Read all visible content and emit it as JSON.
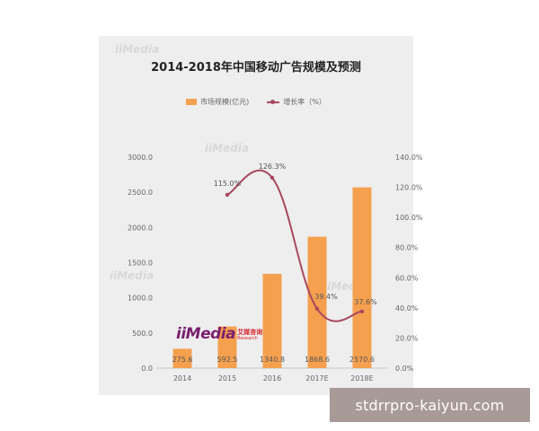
{
  "chart_data": {
    "type": "bar",
    "title": "2014-2018年中国移动广告规模及预测",
    "categories": [
      "2014",
      "2015",
      "2016",
      "2017E",
      "2018E"
    ],
    "series": [
      {
        "name": "市场规模(亿元)",
        "type": "bar",
        "axis": "left",
        "color": "#f5a04e",
        "values": [
          275.6,
          592.5,
          1340.8,
          1868.6,
          2570.6
        ],
        "labels": [
          "275.6",
          "592.5",
          "1340.8",
          "1868.6",
          "2570.6"
        ]
      },
      {
        "name": "增长率（%）",
        "type": "line",
        "axis": "right",
        "color": "#a8485e",
        "values": [
          null,
          115.0,
          126.3,
          39.4,
          37.6
        ],
        "labels": [
          "",
          "115.0%",
          "126.3%",
          "39.4%",
          "37.6%"
        ]
      }
    ],
    "y_left": {
      "ylim": [
        0,
        3000
      ],
      "ticks": [
        0,
        500,
        1000,
        1500,
        2000,
        2500,
        3000
      ],
      "tick_labels": [
        "0.0",
        "500.0",
        "1000.0",
        "1500.0",
        "2000.0",
        "2500.0",
        "3000.0"
      ]
    },
    "y_right": {
      "ylim": [
        0,
        140
      ],
      "ticks": [
        0,
        20,
        40,
        60,
        80,
        100,
        120,
        140
      ],
      "tick_labels": [
        "0.0%",
        "20.0%",
        "40.0%",
        "60.0%",
        "80.0%",
        "100.0%",
        "120.0%",
        "140.0%"
      ]
    },
    "legend": "top-center",
    "grid": false
  },
  "logo": {
    "main": "iiMedia",
    "cn": "艾媒咨询",
    "en": "Research"
  },
  "watermark": {
    "text": "stdrrpro-kaiyun.com"
  }
}
